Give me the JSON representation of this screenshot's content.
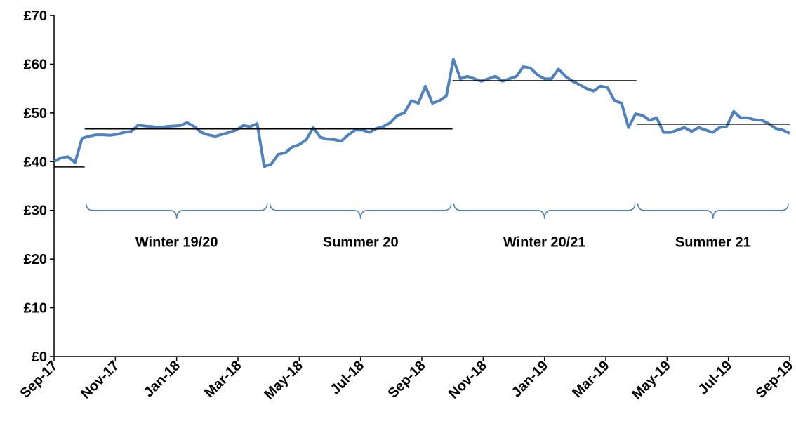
{
  "chart_data": {
    "type": "line",
    "xlim": [
      "2017-09",
      "2019-09"
    ],
    "xticks": [
      {
        "value": "2017-09",
        "label": "Sep-17"
      },
      {
        "value": "2017-11",
        "label": "Nov-17"
      },
      {
        "value": "2018-01",
        "label": "Jan-18"
      },
      {
        "value": "2018-03",
        "label": "Mar-18"
      },
      {
        "value": "2018-05",
        "label": "May-18"
      },
      {
        "value": "2018-07",
        "label": "Jul-18"
      },
      {
        "value": "2018-09",
        "label": "Sep-18"
      },
      {
        "value": "2018-11",
        "label": "Nov-18"
      },
      {
        "value": "2019-01",
        "label": "Jan-19"
      },
      {
        "value": "2019-03",
        "label": "Mar-19"
      },
      {
        "value": "2019-05",
        "label": "May-19"
      },
      {
        "value": "2019-07",
        "label": "Jul-19"
      },
      {
        "value": "2019-09",
        "label": "Sep-19"
      }
    ],
    "ylim": [
      0,
      70
    ],
    "yticks": [
      {
        "value": 0,
        "label": "£0"
      },
      {
        "value": 10,
        "label": "£10"
      },
      {
        "value": 20,
        "label": "£20"
      },
      {
        "value": 30,
        "label": "£30"
      },
      {
        "value": 40,
        "label": "£40"
      },
      {
        "value": 50,
        "label": "£50"
      },
      {
        "value": 60,
        "label": "£60"
      },
      {
        "value": 70,
        "label": "£70"
      }
    ],
    "series": [
      {
        "color": "#4f81bd",
        "values": [
          40,
          40.8,
          41,
          39.8,
          44.8,
          45.2,
          45.5,
          45.5,
          45.4,
          45.6,
          46,
          46.2,
          47.5,
          47.3,
          47.2,
          47,
          47.2,
          47.3,
          47.4,
          48,
          47.2,
          46,
          45.5,
          45.2,
          45.6,
          46,
          46.5,
          47.4,
          47.2,
          47.8,
          39,
          39.5,
          41.5,
          41.8,
          43,
          43.5,
          44.5,
          47,
          45,
          44.6,
          44.5,
          44.2,
          45.5,
          46.5,
          46.5,
          46,
          46.8,
          47.2,
          48,
          49.5,
          50,
          52.5,
          52,
          55.5,
          52,
          52.5,
          53.5,
          61,
          57,
          57.5,
          57,
          56.5,
          57,
          57.5,
          56.5,
          57,
          57.5,
          59.5,
          59.2,
          57.8,
          57,
          57,
          59,
          57.5,
          56.5,
          55.8,
          55,
          54.5,
          55.5,
          55.2,
          52.5,
          52,
          47,
          49.8,
          49.5,
          48.5,
          49,
          46,
          46,
          46.5,
          47,
          46.2,
          47,
          46.5,
          46,
          47,
          47.2,
          50.3,
          49,
          49,
          48.6,
          48.5,
          47.8,
          46.8,
          46.5,
          45.8
        ]
      }
    ],
    "reference_lines": [
      {
        "start": "2017-09",
        "end": "2017-10",
        "value": 38.9
      },
      {
        "start": "2017-10",
        "end": "2018-10",
        "value": 46.7
      },
      {
        "start": "2018-10",
        "end": "2019-04",
        "value": 56.6
      },
      {
        "start": "2019-04",
        "end": "2019-09",
        "value": 47.7
      }
    ],
    "periods": [
      {
        "label": "Winter 19/20",
        "start": "2017-10",
        "end": "2018-04"
      },
      {
        "label": "Summer 20",
        "start": "2018-04",
        "end": "2018-10"
      },
      {
        "label": "Winter 20/21",
        "start": "2018-10",
        "end": "2019-04"
      },
      {
        "label": "Summer 21",
        "start": "2019-04",
        "end": "2019-09"
      }
    ]
  }
}
